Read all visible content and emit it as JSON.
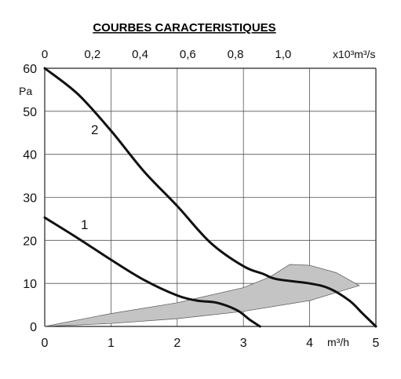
{
  "chart_data": {
    "type": "line",
    "title": "COURBES CARACTERISTIQUES",
    "xlabel": "m³/h",
    "ylabel": "Pa",
    "top_axis_label": "x10³m³/s",
    "xlim": [
      0,
      5
    ],
    "ylim": [
      0,
      60
    ],
    "top_xlim": [
      0,
      1.389
    ],
    "x_ticks": [
      "0",
      "1",
      "2",
      "3",
      "4",
      "5"
    ],
    "y_ticks": [
      "0",
      "10",
      "20",
      "30",
      "40",
      "50",
      "60"
    ],
    "top_ticks": [
      "0",
      "0,2",
      "0,4",
      "0,6",
      "0,8",
      "1,0"
    ],
    "grid": true,
    "series": [
      {
        "name": "1",
        "x": [
          0,
          0.5,
          1.0,
          1.5,
          2.0,
          2.3,
          2.6,
          2.9,
          3.1,
          3.25
        ],
        "y": [
          25.3,
          20.5,
          15.5,
          10.8,
          7.2,
          6.0,
          5.5,
          3.8,
          1.5,
          0
        ]
      },
      {
        "name": "2",
        "x": [
          0,
          0.5,
          1.0,
          1.5,
          2.0,
          2.5,
          3.0,
          3.3,
          3.5,
          4.0,
          4.3,
          4.6,
          4.8,
          5.0
        ],
        "y": [
          60,
          54,
          45.5,
          36,
          28,
          19.5,
          14,
          12.2,
          11,
          10,
          8.8,
          6.0,
          3.0,
          0
        ]
      }
    ],
    "shaded_region": {
      "x": [
        0,
        1.0,
        2.0,
        3.0,
        3.4,
        3.7,
        4.0,
        4.4,
        4.75,
        4.0,
        3.0,
        2.0,
        1.0,
        0
      ],
      "y": [
        0,
        3.0,
        5.5,
        9.0,
        11.5,
        14.4,
        14.2,
        12.5,
        9.5,
        6.0,
        3.5,
        1.8,
        0.7,
        0
      ]
    },
    "colors": {
      "curve": "#111111",
      "shade": "#c4c4c4",
      "grid": "#555555"
    }
  }
}
